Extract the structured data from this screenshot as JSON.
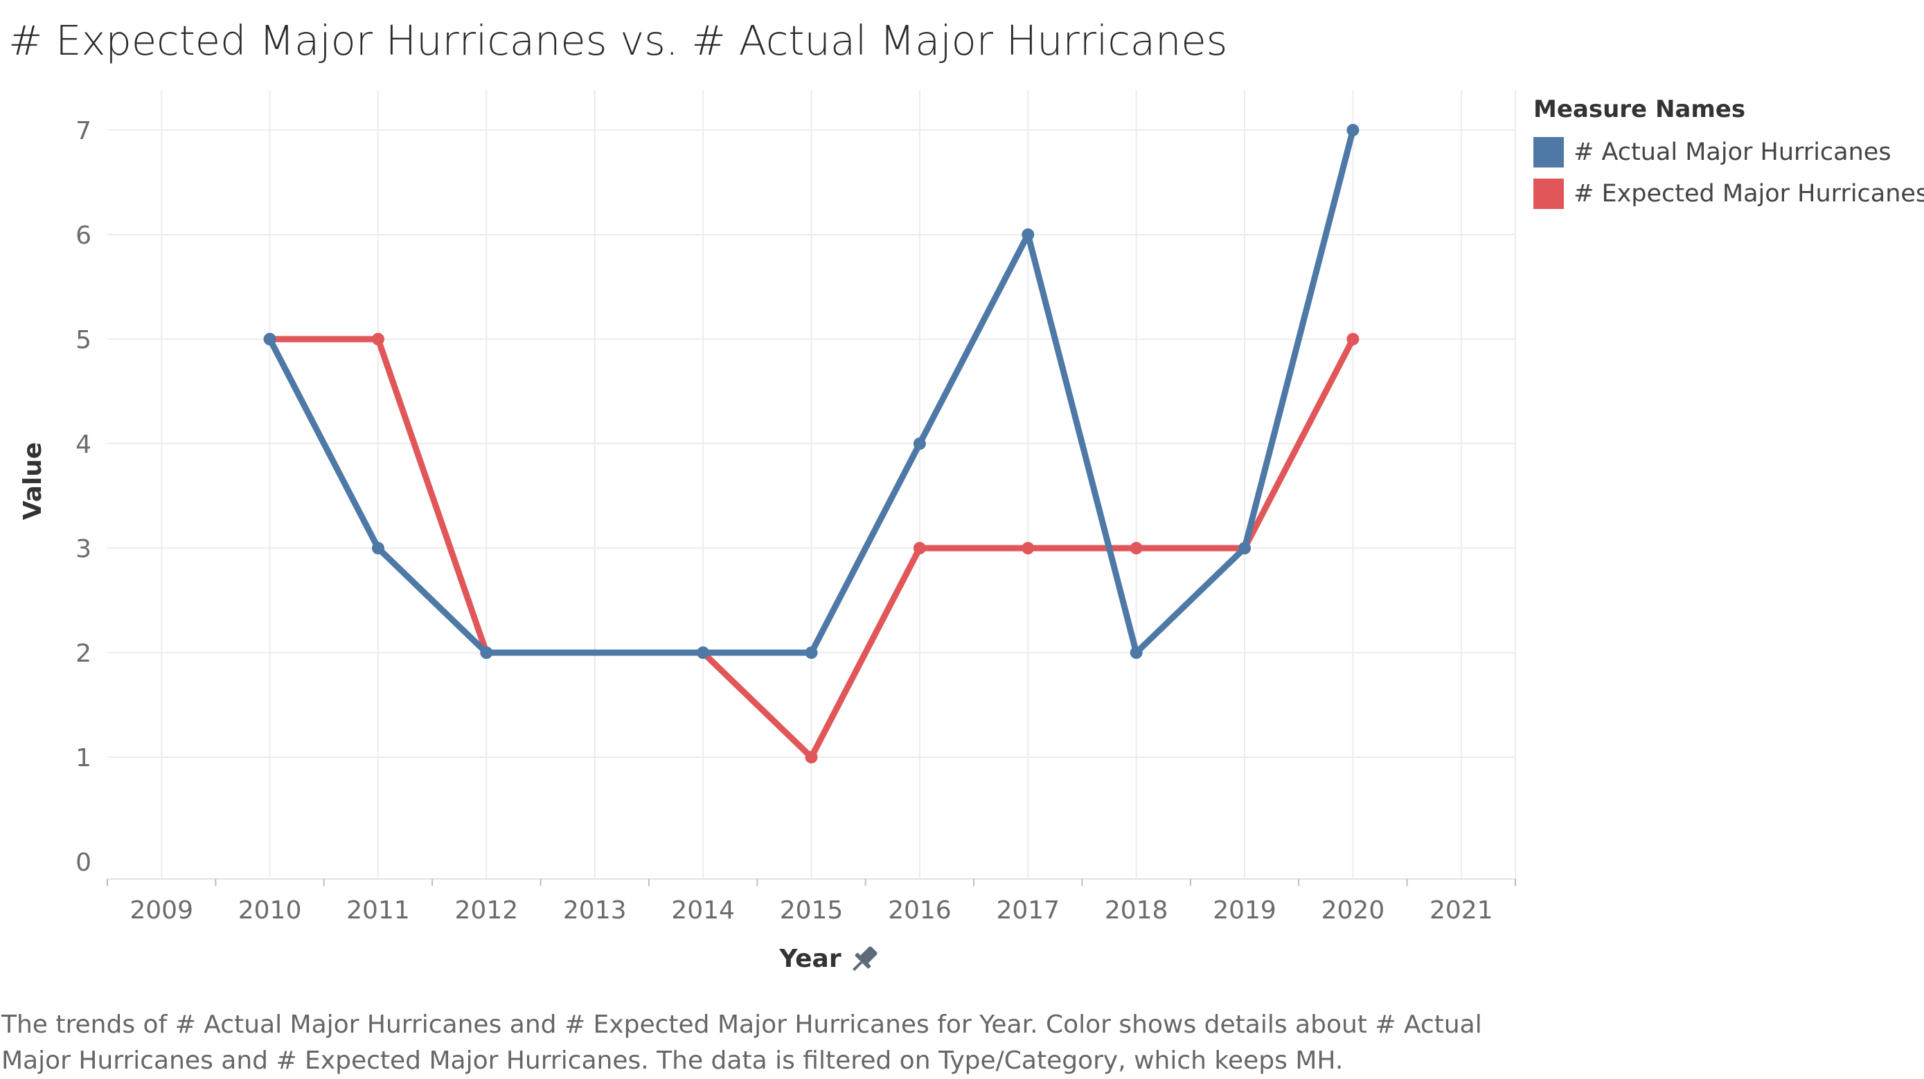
{
  "chart_data": {
    "type": "line",
    "title": "# Expected Major Hurricanes vs. # Actual Major Hurricanes",
    "xlabel": "Year",
    "ylabel": "Value",
    "x_ticks": [
      2009,
      2010,
      2011,
      2012,
      2013,
      2014,
      2015,
      2016,
      2017,
      2018,
      2019,
      2020,
      2021
    ],
    "y_ticks": [
      0,
      1,
      2,
      3,
      4,
      5,
      6,
      7
    ],
    "xlim": [
      2009,
      2021
    ],
    "ylim": [
      0,
      7
    ],
    "grid": true,
    "legend_position": "right",
    "legend_title": "Measure Names",
    "x": [
      2010,
      2011,
      2012,
      2013,
      2014,
      2015,
      2016,
      2017,
      2018,
      2019,
      2020
    ],
    "series": [
      {
        "name": "# Actual Major Hurricanes",
        "color": "#4e79a7",
        "values": [
          5,
          3,
          2,
          null,
          2,
          2,
          4,
          6,
          2,
          3,
          7
        ]
      },
      {
        "name": "# Expected Major Hurricanes",
        "color": "#e15759",
        "values": [
          5,
          5,
          2,
          null,
          2,
          1,
          3,
          3,
          3,
          3,
          5
        ]
      }
    ]
  },
  "caption": "The trends of # Actual Major Hurricanes and # Expected Major Hurricanes for Year.  Color shows details about # Actual Major Hurricanes and # Expected Major Hurricanes. The data is filtered on Type/Category, which keeps MH.",
  "icons": {
    "year_axis": "pin-icon"
  }
}
